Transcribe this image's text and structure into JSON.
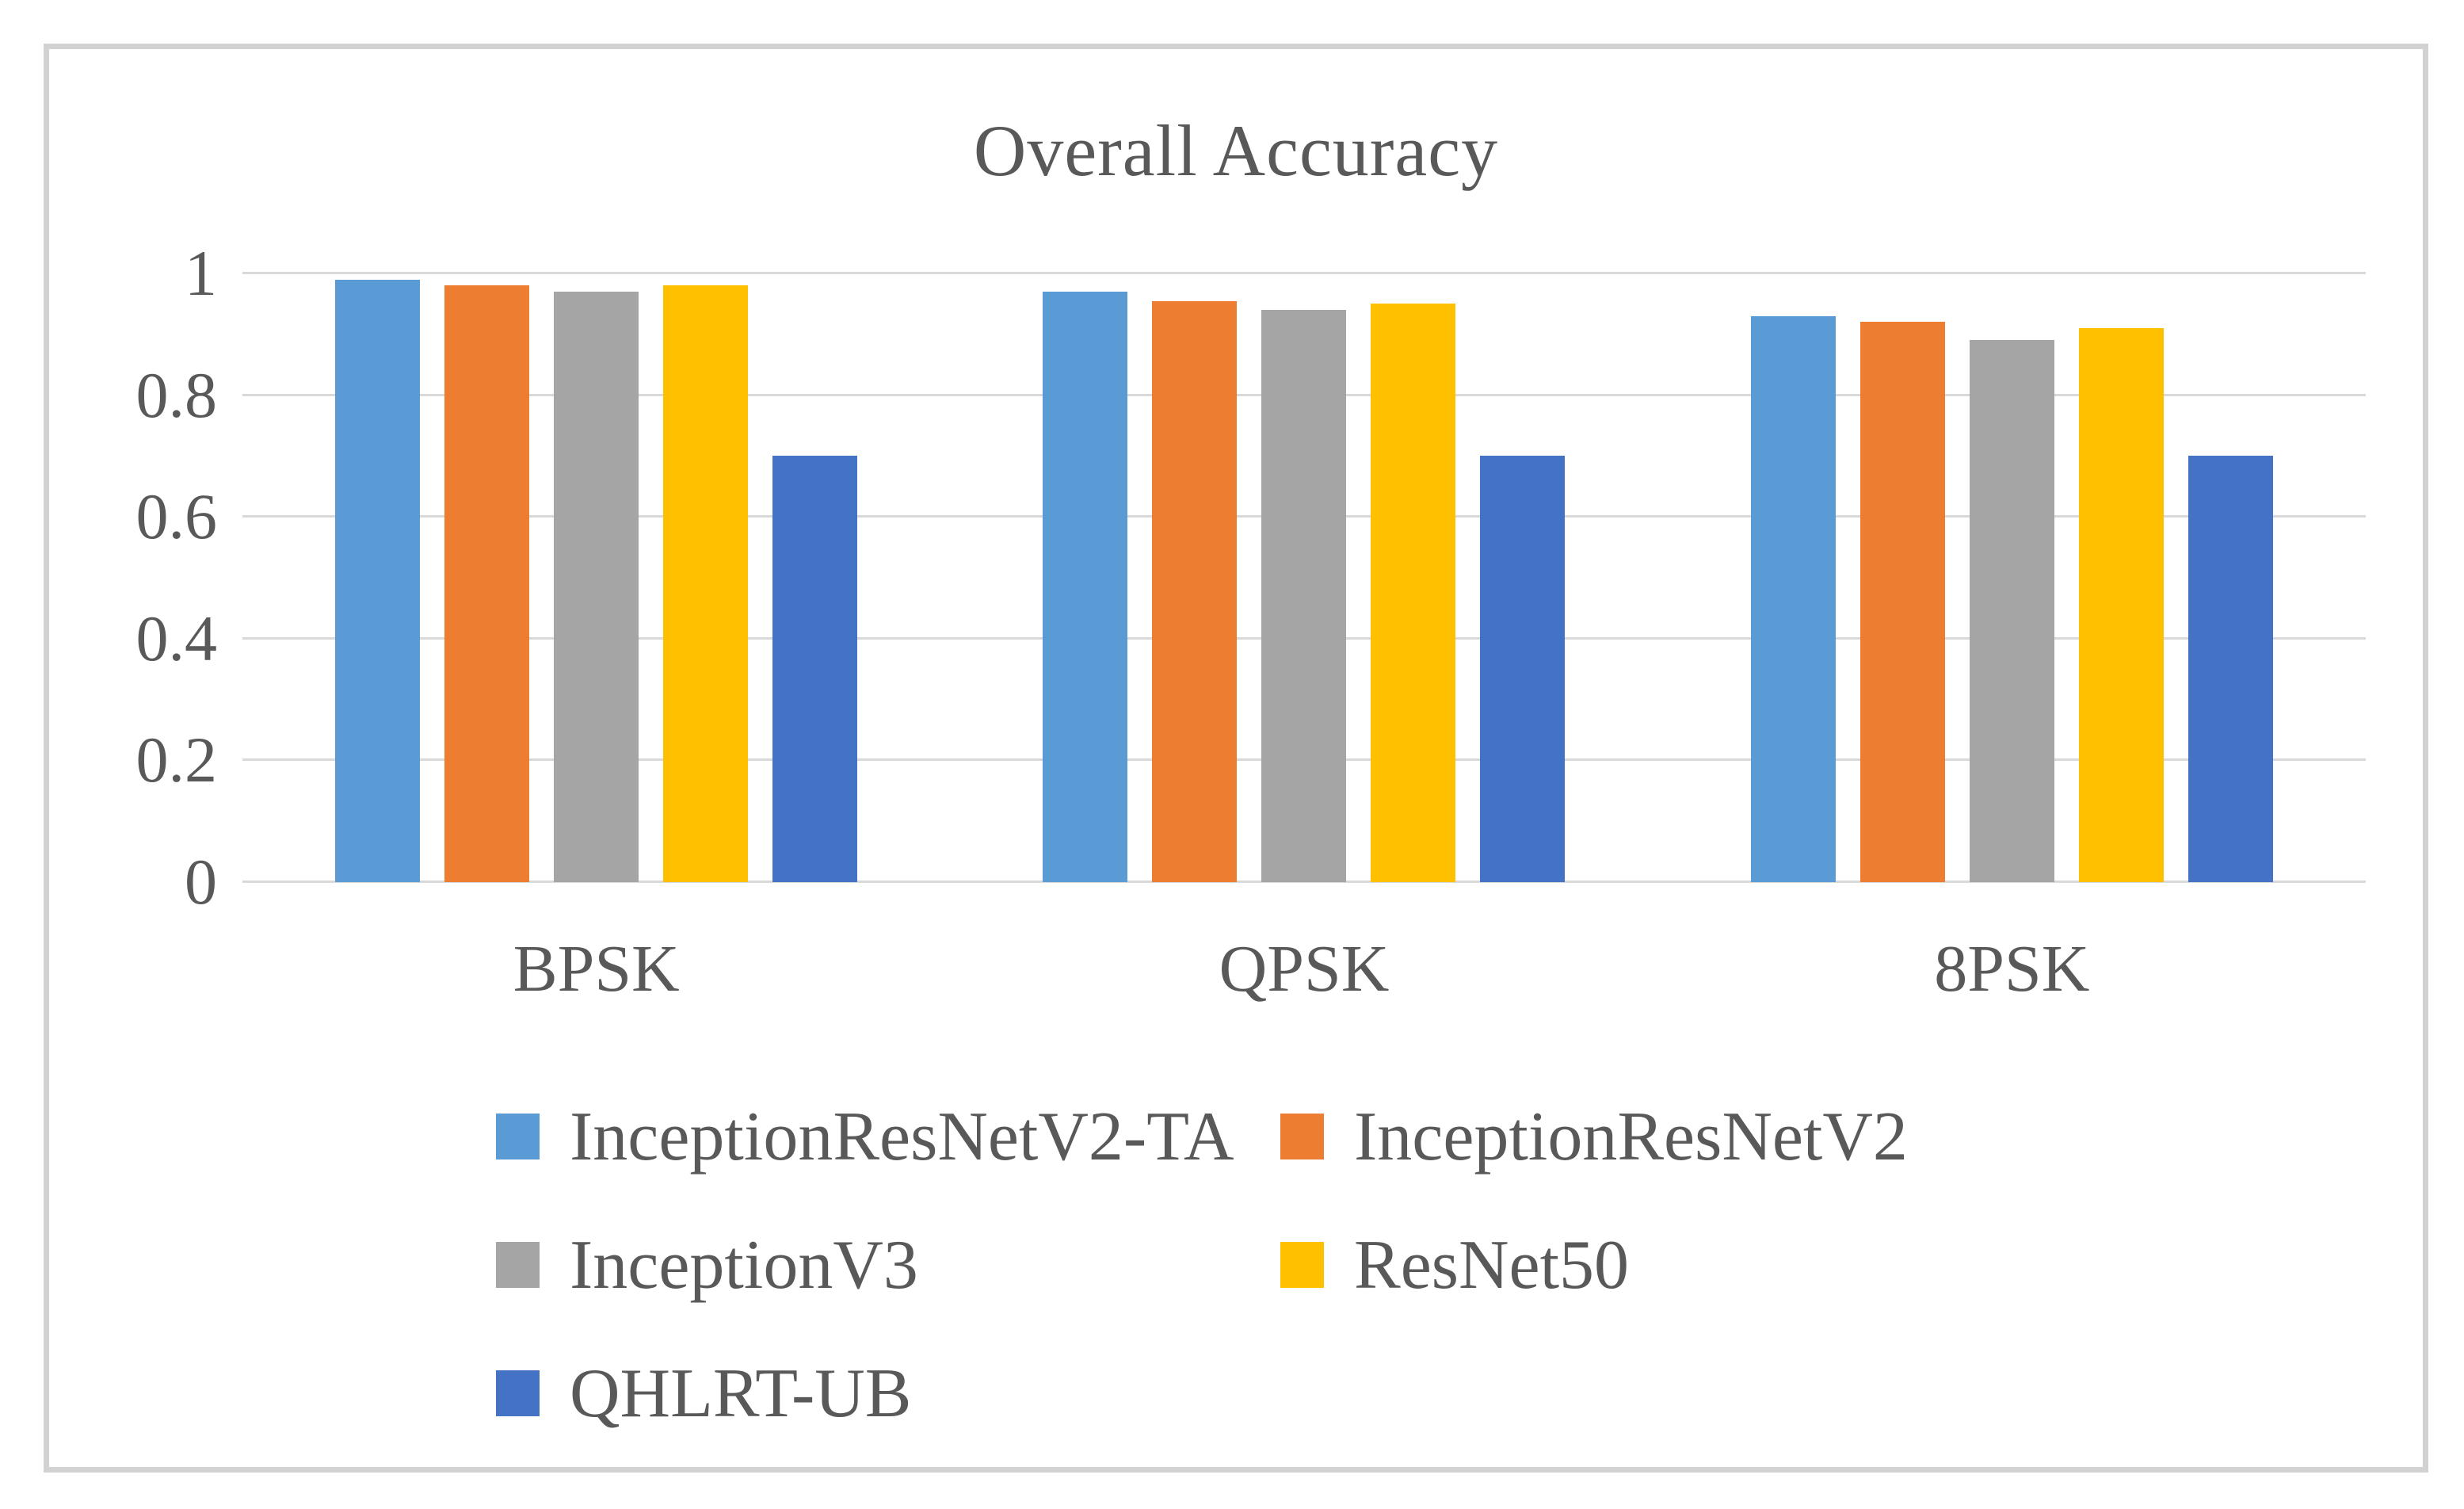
{
  "chart_data": {
    "type": "bar",
    "title": "Overall Accuracy",
    "categories": [
      "BPSK",
      "QPSK",
      "8PSK"
    ],
    "series": [
      {
        "name": "InceptionResNetV2-TA",
        "color": "#5B9BD5",
        "values": [
          0.99,
          0.97,
          0.93
        ]
      },
      {
        "name": "InceptionResNetV2",
        "color": "#ED7D31",
        "values": [
          0.98,
          0.955,
          0.92
        ]
      },
      {
        "name": "InceptionV3",
        "color": "#A5A5A5",
        "values": [
          0.97,
          0.94,
          0.89
        ]
      },
      {
        "name": "ResNet50",
        "color": "#FFC000",
        "values": [
          0.98,
          0.95,
          0.91
        ]
      },
      {
        "name": "QHLRT-UB",
        "color": "#4472C4",
        "values": [
          0.7,
          0.7,
          0.7
        ]
      }
    ],
    "xlabel": "",
    "ylabel": "",
    "ylim": [
      0,
      1
    ],
    "yticks": [
      1,
      0.8,
      0.6,
      0.4,
      0.2,
      0
    ],
    "ytick_labels": [
      "1",
      "0.8",
      "0.6",
      "0.4",
      "0.2",
      "0"
    ],
    "grid": true,
    "gridline_color": "#D9D9D9",
    "text_color": "#595959",
    "frame_border_color": "#D2D2D2",
    "legend_position": "bottom, two columns, wrapped"
  }
}
